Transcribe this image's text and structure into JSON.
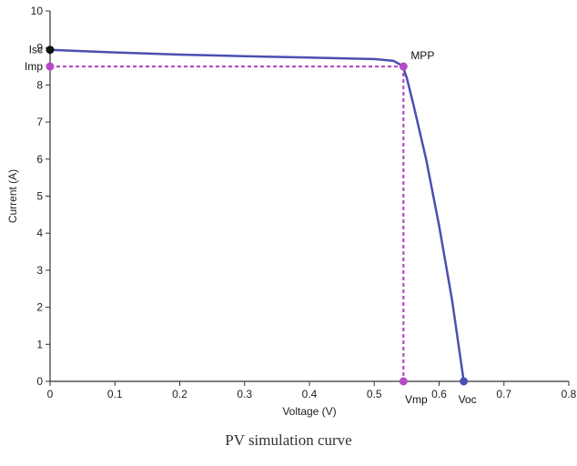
{
  "caption": "PV simulation curve",
  "chart_data": {
    "type": "line",
    "xlabel": "Voltage (V)",
    "ylabel": "Current (A)",
    "xlim": [
      0,
      0.8
    ],
    "ylim": [
      0,
      10
    ],
    "x_ticks": [
      "0",
      "0.1",
      "0.2",
      "0.3",
      "0.4",
      "0.5",
      "0.6",
      "0.7",
      "0.8"
    ],
    "y_ticks": [
      "0",
      "1",
      "2",
      "3",
      "4",
      "5",
      "6",
      "7",
      "8",
      "9",
      "10"
    ],
    "grid": false,
    "series": [
      {
        "color": "#4b4fb0",
        "x": [
          0,
          0.1,
          0.2,
          0.3,
          0.4,
          0.5,
          0.53,
          0.54,
          0.545,
          0.55,
          0.56,
          0.58,
          0.6,
          0.62,
          0.638
        ],
        "y": [
          8.95,
          8.88,
          8.82,
          8.78,
          8.74,
          8.7,
          8.65,
          8.55,
          8.45,
          8.2,
          7.5,
          6.0,
          4.2,
          2.2,
          0.0
        ]
      }
    ],
    "reference_lines": {
      "color": "#b44ac4",
      "mpp_voltage": 0.545,
      "mpp_current": 8.5
    },
    "points": [
      {
        "label": "Isc",
        "x": 0,
        "y": 8.95,
        "color": "#111111"
      },
      {
        "label": "Imp",
        "x": 0,
        "y": 8.5,
        "color": "#b44ac4"
      },
      {
        "label": "MPP",
        "x": 0.545,
        "y": 8.5,
        "color": "#b44ac4"
      },
      {
        "label": "Vmp",
        "x": 0.545,
        "y": 0,
        "color": "#b44ac4"
      },
      {
        "label": "Voc",
        "x": 0.638,
        "y": 0,
        "color": "#4b4fb0"
      }
    ]
  }
}
